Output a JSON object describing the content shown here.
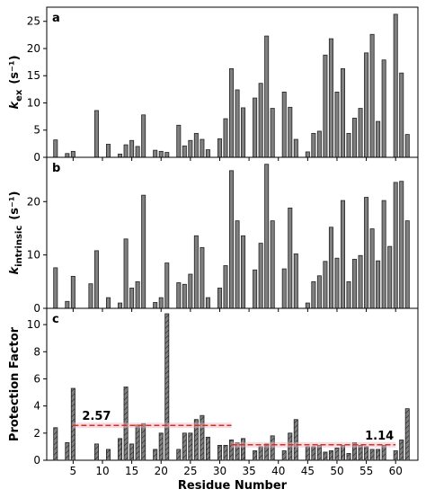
{
  "chart_data": [
    {
      "type": "bar",
      "label": "a",
      "ylabel": "k",
      "ylabel_sub": "ex",
      "ylabel_unit": "(s⁻¹)",
      "color": "#808080",
      "x": [
        2,
        4,
        5,
        8,
        9,
        11,
        13,
        14,
        15,
        16,
        17,
        19,
        20,
        21,
        23,
        24,
        25,
        26,
        27,
        28,
        30,
        31,
        32,
        33,
        34,
        36,
        37,
        38,
        39,
        41,
        42,
        43,
        45,
        46,
        47,
        48,
        49,
        50,
        51,
        52,
        53,
        54,
        55,
        56,
        57,
        58,
        59,
        60,
        61,
        62
      ],
      "values": [
        3.2,
        0.7,
        1.1,
        null,
        8.6,
        2.4,
        0.6,
        2.3,
        3.1,
        2.0,
        7.8,
        1.3,
        1.1,
        0.9,
        5.9,
        2.1,
        3.1,
        4.4,
        3.3,
        1.4,
        3.4,
        7.1,
        16.3,
        12.4,
        9.1,
        10.9,
        13.6,
        22.3,
        9.0,
        12.0,
        9.2,
        3.3,
        1.0,
        4.4,
        4.8,
        18.8,
        21.8,
        12.0,
        16.3,
        4.4,
        7.2,
        9.0,
        19.2,
        22.6,
        6.6,
        17.9,
        null,
        26.3,
        15.5,
        4.2
      ],
      "xlim": [
        0.5,
        63.8
      ],
      "xticks": [
        5,
        10,
        15,
        20,
        25,
        30,
        35,
        40,
        45,
        50,
        55,
        60
      ],
      "ylim": [
        0,
        27.6
      ],
      "yticks": [
        0,
        5,
        10,
        15,
        20,
        25
      ]
    },
    {
      "type": "bar",
      "label": "b",
      "ylabel": "k",
      "ylabel_sub": "intrinsic",
      "ylabel_unit": "(s⁻¹)",
      "color": "#808080",
      "x": [
        2,
        4,
        5,
        8,
        9,
        11,
        13,
        14,
        15,
        16,
        17,
        19,
        20,
        21,
        23,
        24,
        25,
        26,
        27,
        28,
        30,
        31,
        32,
        33,
        34,
        36,
        37,
        38,
        39,
        41,
        42,
        43,
        45,
        46,
        47,
        48,
        49,
        50,
        51,
        52,
        53,
        54,
        55,
        56,
        57,
        58,
        59,
        60,
        61,
        62
      ],
      "values": [
        7.6,
        1.3,
        6.0,
        4.6,
        10.8,
        2.0,
        1.0,
        13.0,
        3.8,
        5.0,
        21.2,
        1.1,
        2.0,
        8.5,
        4.8,
        4.5,
        6.4,
        13.6,
        11.4,
        2.0,
        3.8,
        8.0,
        25.8,
        16.4,
        13.6,
        7.2,
        12.2,
        27.0,
        16.4,
        7.4,
        18.8,
        10.2,
        1.0,
        5.0,
        6.1,
        8.8,
        15.2,
        9.4,
        20.2,
        5.0,
        9.2,
        9.9,
        20.8,
        14.9,
        8.9,
        20.2,
        11.6,
        23.6,
        23.8,
        16.4
      ],
      "xlim": [
        0.5,
        63.8
      ],
      "xticks": [
        5,
        10,
        15,
        20,
        25,
        30,
        35,
        40,
        45,
        50,
        55,
        60
      ],
      "ylim": [
        0,
        28.3
      ],
      "yticks": [
        0,
        10,
        20
      ]
    },
    {
      "type": "bar",
      "label": "c",
      "ylabel": "Protection Factor",
      "xlabel": "Residue Number",
      "color": "#808080",
      "hatch": true,
      "x": [
        2,
        4,
        5,
        8,
        9,
        11,
        13,
        14,
        15,
        16,
        17,
        19,
        20,
        21,
        23,
        24,
        25,
        26,
        27,
        28,
        30,
        31,
        32,
        33,
        34,
        36,
        37,
        38,
        39,
        41,
        42,
        43,
        45,
        46,
        47,
        48,
        49,
        50,
        51,
        52,
        53,
        54,
        55,
        56,
        57,
        58,
        59,
        60,
        61,
        62
      ],
      "values": [
        2.4,
        1.3,
        5.3,
        null,
        1.2,
        0.8,
        1.6,
        5.4,
        1.2,
        2.6,
        2.7,
        0.8,
        2.0,
        10.8,
        0.8,
        2.0,
        2.0,
        3.0,
        3.3,
        1.7,
        1.1,
        1.1,
        1.5,
        1.3,
        1.6,
        0.7,
        1.0,
        1.2,
        1.8,
        0.7,
        2.0,
        3.0,
        1.0,
        1.0,
        1.1,
        0.6,
        0.7,
        0.9,
        1.1,
        0.5,
        1.3,
        1.1,
        1.0,
        0.8,
        0.8,
        1.1,
        null,
        0.7,
        1.5,
        3.8
      ],
      "xlim": [
        0.5,
        63.8
      ],
      "xticks": [
        5,
        10,
        15,
        20,
        25,
        30,
        35,
        40,
        45,
        50,
        55,
        60
      ],
      "ylim": [
        0,
        11.2
      ],
      "yticks": [
        0,
        2,
        4,
        6,
        8,
        10
      ],
      "mean_lines": [
        {
          "value": 2.57,
          "x_start": 5,
          "x_end": 32,
          "color": "#c0392b"
        },
        {
          "value": 1.14,
          "x_start": 32,
          "x_end": 60,
          "color": "#c0392b"
        }
      ]
    }
  ]
}
